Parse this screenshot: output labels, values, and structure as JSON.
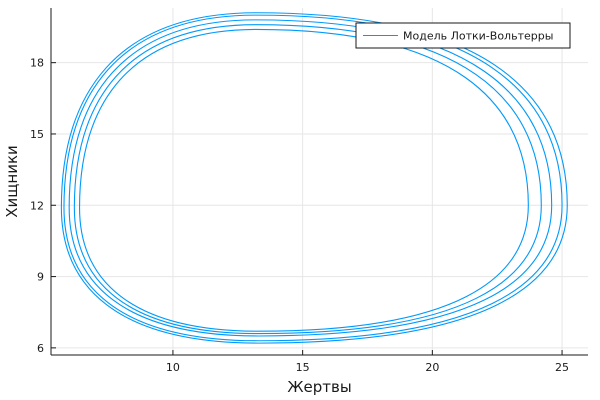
{
  "chart_data": {
    "type": "line",
    "title": "",
    "xlabel": "Жертвы",
    "ylabel": "Хищники",
    "xlim": [
      5.3,
      26.0
    ],
    "ylim": [
      5.7,
      20.3
    ],
    "x_ticks": [
      10,
      15,
      20,
      25
    ],
    "y_ticks": [
      6,
      9,
      12,
      15,
      18
    ],
    "grid": true,
    "legend_position": "top-right",
    "series": [
      {
        "name": "Модель Лотки-Вольтерры",
        "color": "#009AFA",
        "cycles": [
          {
            "x_min": 6.4,
            "x_max": 23.7,
            "y_min": 6.7,
            "y_max": 19.4,
            "x_at_top": 13.2,
            "x_at_bottom": 13.3,
            "y_at_left": 11.9,
            "y_at_right": 12.0
          },
          {
            "x_min": 6.2,
            "x_max": 24.2,
            "y_min": 6.6,
            "y_max": 19.6,
            "x_at_top": 13.2,
            "x_at_bottom": 13.3,
            "y_at_left": 11.9,
            "y_at_right": 12.0
          },
          {
            "x_min": 6.0,
            "x_max": 24.6,
            "y_min": 6.5,
            "y_max": 19.8,
            "x_at_top": 13.2,
            "x_at_bottom": 13.3,
            "y_at_left": 11.9,
            "y_at_right": 12.0
          },
          {
            "x_min": 5.8,
            "x_max": 25.0,
            "y_min": 6.3,
            "y_max": 20.0,
            "x_at_top": 13.2,
            "x_at_bottom": 13.3,
            "y_at_left": 11.9,
            "y_at_right": 12.0
          },
          {
            "x_min": 5.7,
            "x_max": 25.2,
            "y_min": 6.2,
            "y_max": 20.1,
            "x_at_top": 13.2,
            "x_at_bottom": 13.3,
            "y_at_left": 11.9,
            "y_at_right": 12.0
          }
        ]
      }
    ]
  }
}
